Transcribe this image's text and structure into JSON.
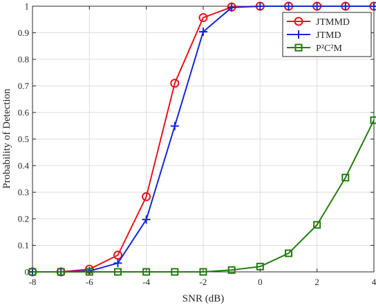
{
  "chart_data": {
    "type": "line",
    "xlabel": "SNR (dB)",
    "ylabel": "Probability of Detection",
    "xlim": [
      -8,
      4
    ],
    "ylim": [
      0,
      1
    ],
    "xticks": [
      -8,
      -6,
      -4,
      -2,
      0,
      2,
      4
    ],
    "yticks": [
      0,
      0.1,
      0.2,
      0.3,
      0.4,
      0.5,
      0.6,
      0.7,
      0.8,
      0.9,
      1
    ],
    "grid": true,
    "legend_position": "top-right",
    "x": [
      -8,
      -7,
      -6,
      -5,
      -4,
      -3,
      -2,
      -1,
      0,
      1,
      2,
      3,
      4
    ],
    "series": [
      {
        "name": "JTMMD",
        "color": "#e8141a",
        "marker": "circle",
        "values": [
          0.0,
          0.0,
          0.01,
          0.063,
          0.283,
          0.71,
          0.957,
          0.997,
          1.0,
          1.0,
          1.0,
          1.0,
          1.0
        ]
      },
      {
        "name": "JTMD",
        "color": "#1426d6",
        "marker": "plus",
        "values": [
          0.0,
          0.0,
          0.003,
          0.033,
          0.197,
          0.549,
          0.904,
          0.995,
          1.0,
          1.0,
          1.0,
          1.0,
          1.0
        ]
      },
      {
        "name": "P²C²M",
        "color": "#237a10",
        "marker": "square",
        "values": [
          0.0,
          0.0,
          0.0,
          0.0,
          0.0,
          0.0,
          0.0,
          0.007,
          0.02,
          0.07,
          0.177,
          0.355,
          0.571
        ]
      }
    ]
  }
}
